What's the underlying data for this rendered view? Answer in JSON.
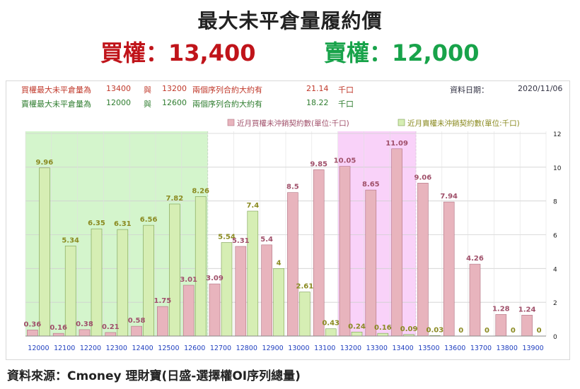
{
  "header": {
    "title": "最大未平倉量履約價",
    "call_label": "買權：13,400",
    "put_label": "賣權：12,000"
  },
  "info": {
    "call_line": {
      "prefix": "買權最大未平倉量為",
      "value1": "13400",
      "and": "與",
      "value2": "13200",
      "desc": "兩個序列合約大約有",
      "amount": "21.14",
      "unit": "千口"
    },
    "put_line": {
      "prefix": "賣權最大未平倉量為",
      "value1": "12000",
      "and": "與",
      "value2": "12600",
      "desc": "兩個序列合約大約有",
      "amount": "18.22",
      "unit": "千口"
    },
    "date_label": "資料日期：",
    "date_value": "2020/11/06"
  },
  "colors": {
    "call_bar": "#e8b4bd",
    "call_stroke": "#b07080",
    "put_bar": "#d6eeb4",
    "put_stroke": "#7a9c4e",
    "call_label": "#a0506a",
    "put_label": "#8a8a20",
    "green_zone": "#d4f5cc",
    "pink_zone": "#f9d2f9",
    "x_tick": "#1f3fbf"
  },
  "chart_data": {
    "type": "bar",
    "categories": [
      "12000",
      "12100",
      "12200",
      "12300",
      "12400",
      "12500",
      "12600",
      "12700",
      "12800",
      "12900",
      "13000",
      "13100",
      "13200",
      "13300",
      "13400",
      "13500",
      "13600",
      "13700",
      "13800",
      "13900"
    ],
    "series": [
      {
        "name": "近月買權未沖銷契約數(單位:千口)",
        "values": [
          0.36,
          0.16,
          0.38,
          0.21,
          0.58,
          1.75,
          3.01,
          3.09,
          5.31,
          5.4,
          8.5,
          9.85,
          10.05,
          8.65,
          11.09,
          9.06,
          7.94,
          4.26,
          1.28,
          1.24
        ]
      },
      {
        "name": "近月賣權未沖銷契約數(單位:千口)",
        "values": [
          9.96,
          5.34,
          6.35,
          6.31,
          6.56,
          7.82,
          8.26,
          5.54,
          7.4,
          4,
          2.61,
          0.43,
          0.24,
          0.16,
          0.09,
          0.03,
          0,
          0,
          0,
          0
        ]
      }
    ],
    "ylim": [
      0,
      12
    ],
    "yticks": [
      "0",
      "2",
      "4",
      "6",
      "8",
      "10",
      "12"
    ],
    "highlight_zones": [
      {
        "from": "12000",
        "to": "12600",
        "color": "green"
      },
      {
        "from": "13200",
        "to": "13400",
        "color": "pink"
      }
    ],
    "legend": "top-right",
    "grid": true
  },
  "footer": {
    "source": "資料來源：Cmoney 理財寶(日盛-選擇權OI序列總量)"
  }
}
